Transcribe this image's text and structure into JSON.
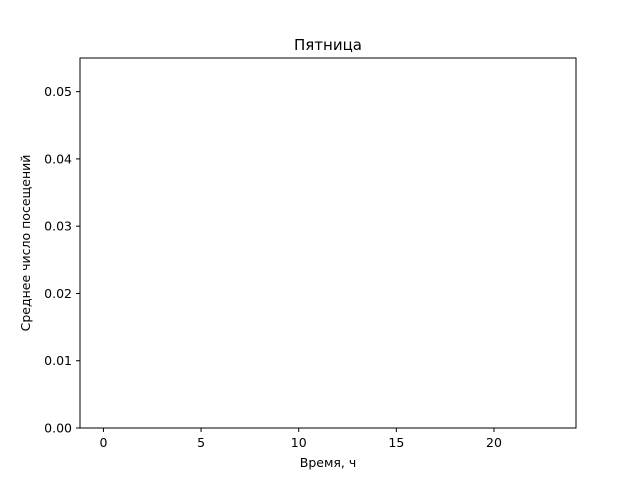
{
  "chart_data": {
    "type": "line",
    "title": "Пятница",
    "xlabel": "Время, ч",
    "ylabel": "Среднее число посещений",
    "xlim": [
      -1.2,
      24.2
    ],
    "ylim": [
      0,
      0.055
    ],
    "x_ticks": [
      0,
      5,
      10,
      15,
      20
    ],
    "x_tick_labels": [
      "0",
      "5",
      "10",
      "15",
      "20"
    ],
    "y_ticks": [
      0,
      0.01,
      0.02,
      0.03,
      0.04,
      0.05
    ],
    "y_tick_labels": [
      "0.00",
      "0.01",
      "0.02",
      "0.03",
      "0.04",
      "0.05"
    ],
    "grid": false,
    "series": []
  }
}
